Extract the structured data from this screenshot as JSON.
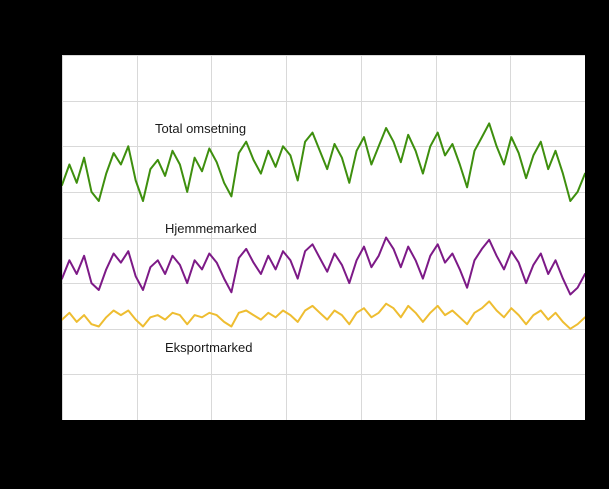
{
  "page": {
    "background_color": "#000000",
    "plot_background_color": "#ffffff",
    "gridline_color": "#d9d9d9"
  },
  "chart_data": {
    "type": "line",
    "title": "",
    "xlabel": "",
    "ylabel": "",
    "ylim": [
      0,
      160
    ],
    "grid": true,
    "legend_position": "inline-labels",
    "x_tick_intervals": 7,
    "y_tick_intervals": 8,
    "series": [
      {
        "name": "Total omsetning",
        "color": "#3e8f0e",
        "values": [
          103,
          112,
          104,
          115,
          100,
          96,
          108,
          117,
          112,
          120,
          105,
          96,
          110,
          114,
          107,
          118,
          112,
          100,
          115,
          109,
          119,
          113,
          104,
          98,
          117,
          122,
          114,
          108,
          118,
          111,
          120,
          116,
          105,
          122,
          126,
          118,
          110,
          121,
          115,
          104,
          118,
          124,
          112,
          120,
          128,
          122,
          113,
          125,
          118,
          108,
          120,
          126,
          116,
          121,
          112,
          102,
          118,
          124,
          130,
          120,
          112,
          124,
          117,
          106,
          116,
          122,
          110,
          118,
          108,
          96,
          100,
          108
        ]
      },
      {
        "name": "Hjemmemarked",
        "color": "#7d1a87",
        "values": [
          62,
          70,
          64,
          72,
          60,
          57,
          66,
          73,
          69,
          74,
          63,
          57,
          67,
          70,
          64,
          72,
          68,
          60,
          70,
          66,
          73,
          69,
          62,
          56,
          71,
          75,
          69,
          64,
          72,
          66,
          74,
          70,
          62,
          74,
          77,
          71,
          65,
          73,
          68,
          60,
          70,
          76,
          67,
          72,
          80,
          75,
          67,
          76,
          70,
          62,
          72,
          77,
          69,
          73,
          66,
          58,
          70,
          75,
          79,
          72,
          66,
          74,
          69,
          60,
          68,
          73,
          64,
          70,
          62,
          55,
          58,
          64
        ]
      },
      {
        "name": "Eksportmarked",
        "color": "#eebd31",
        "values": [
          44,
          47,
          43,
          46,
          42,
          41,
          45,
          48,
          46,
          48,
          44,
          41,
          45,
          46,
          44,
          47,
          46,
          42,
          46,
          45,
          47,
          46,
          43,
          41,
          47,
          48,
          46,
          44,
          47,
          45,
          48,
          46,
          43,
          48,
          50,
          47,
          44,
          48,
          46,
          42,
          47,
          49,
          45,
          47,
          51,
          49,
          45,
          50,
          47,
          43,
          47,
          50,
          46,
          48,
          45,
          42,
          47,
          49,
          52,
          48,
          45,
          49,
          46,
          42,
          46,
          48,
          44,
          47,
          43,
          40,
          42,
          45
        ]
      }
    ]
  }
}
